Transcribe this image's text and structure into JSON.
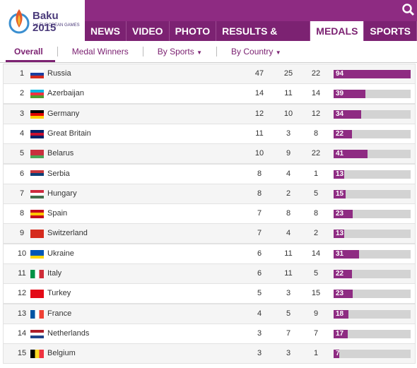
{
  "header": {
    "logo_title": "Baku 2015",
    "logo_subtitle": "1st EUROPEAN GAMES",
    "nav": [
      "NEWS",
      "VIDEO",
      "PHOTO",
      "RESULTS & SCHEDULE",
      "MEDALS",
      "SPORTS"
    ]
  },
  "tabs": [
    "Overall",
    "Medal Winners",
    "By Sports",
    "By Country"
  ],
  "table": {
    "rows": [
      [
        "1",
        "Russia",
        47,
        25,
        22,
        94
      ],
      [
        "2",
        "Azerbaijan",
        14,
        11,
        14,
        39
      ],
      [
        "3",
        "Germany",
        12,
        10,
        12,
        34
      ],
      [
        "4",
        "Great Britain",
        11,
        3,
        8,
        22
      ],
      [
        "5",
        "Belarus",
        10,
        9,
        22,
        41
      ],
      [
        "6",
        "Serbia",
        8,
        4,
        1,
        13
      ],
      [
        "7",
        "Hungary",
        8,
        2,
        5,
        15
      ],
      [
        "8",
        "Spain",
        7,
        8,
        8,
        23
      ],
      [
        "9",
        "Switzerland",
        7,
        4,
        2,
        13
      ],
      [
        "10",
        "Ukraine",
        6,
        11,
        14,
        31
      ],
      [
        "11",
        "Italy",
        6,
        11,
        5,
        22
      ],
      [
        "12",
        "Turkey",
        5,
        3,
        15,
        23
      ],
      [
        "13",
        "France",
        4,
        5,
        9,
        18
      ],
      [
        "14",
        "Netherlands",
        3,
        7,
        7,
        17
      ],
      [
        "15",
        "Belgium",
        3,
        3,
        1,
        7
      ]
    ]
  }
}
